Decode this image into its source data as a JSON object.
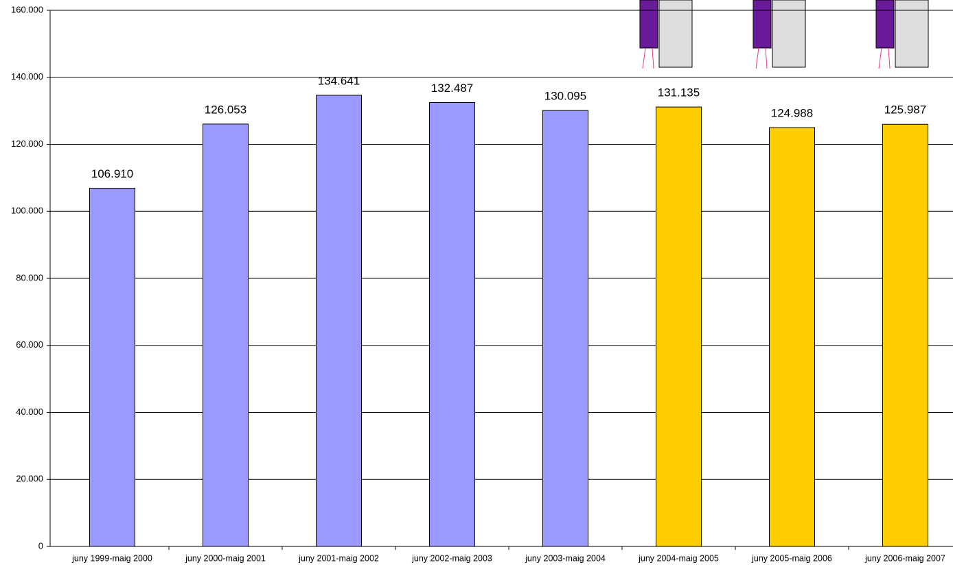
{
  "chart_data": {
    "type": "bar",
    "categories": [
      "juny 1999-maig 2000",
      "juny 2000-maig 2001",
      "juny 2001-maig 2002",
      "juny 2002-maig 2003",
      "juny 2003-maig 2004",
      "juny 2004-maig 2005",
      "juny 2005-maig 2006",
      "juny 2006-maig 2007"
    ],
    "values": [
      106910,
      126053,
      134641,
      132487,
      130095,
      131135,
      124988,
      125987
    ],
    "value_labels": [
      "106.910",
      "126.053",
      "134.641",
      "132.487",
      "130.095",
      "131.135",
      "124.988",
      "125.987"
    ],
    "colors": [
      "#9999ff",
      "#9999ff",
      "#9999ff",
      "#9999ff",
      "#9999ff",
      "#ffcc00",
      "#ffcc00",
      "#ffcc00"
    ],
    "ylim": [
      0,
      160000
    ],
    "yticks": [
      0,
      {
        "value": 20000,
        "label": "20.000"
      },
      {
        "value": 40000,
        "label": "40.000"
      },
      {
        "value": 60000,
        "label": "60.000"
      },
      {
        "value": 80000,
        "label": "80.000"
      },
      {
        "value": 100000,
        "label": "100.000"
      },
      {
        "value": 120000,
        "label": "120.000"
      },
      {
        "value": 140000,
        "label": "140.000"
      },
      {
        "value": 160000,
        "label": "160.000"
      }
    ],
    "grid": true
  }
}
